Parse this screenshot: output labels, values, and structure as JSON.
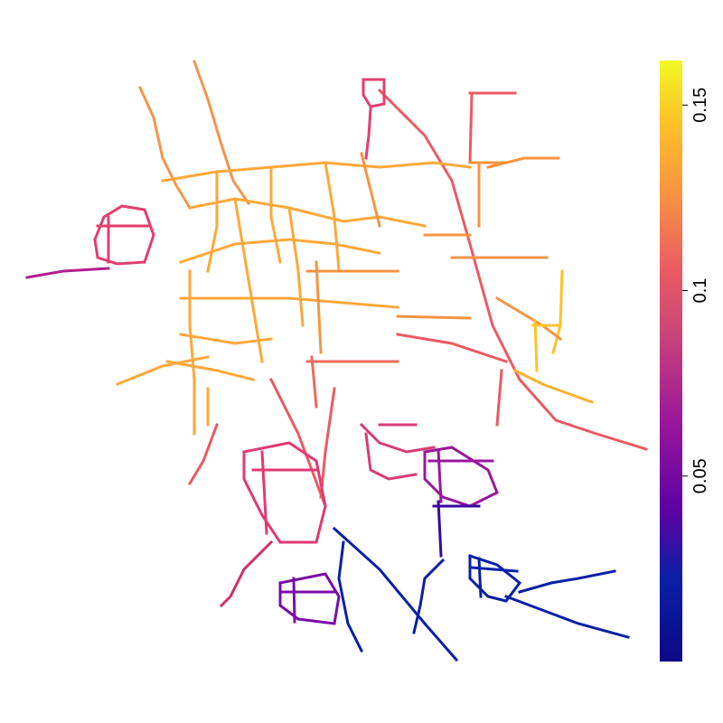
{
  "map": {
    "type": "road-network",
    "color_scale": {
      "name": "plasma",
      "min": 0.0,
      "max": 0.162,
      "stops": [
        "#0d0887",
        "#0b1fa6",
        "#5b02a3",
        "#9a179b",
        "#cb4678",
        "#ea5a63",
        "#f89441",
        "#fdc328",
        "#f0f921"
      ],
      "ticks": [
        {
          "value": 0.05,
          "label": "0.05"
        },
        {
          "value": 0.1,
          "label": "0.1"
        },
        {
          "value": 0.15,
          "label": "0.15"
        }
      ]
    }
  }
}
